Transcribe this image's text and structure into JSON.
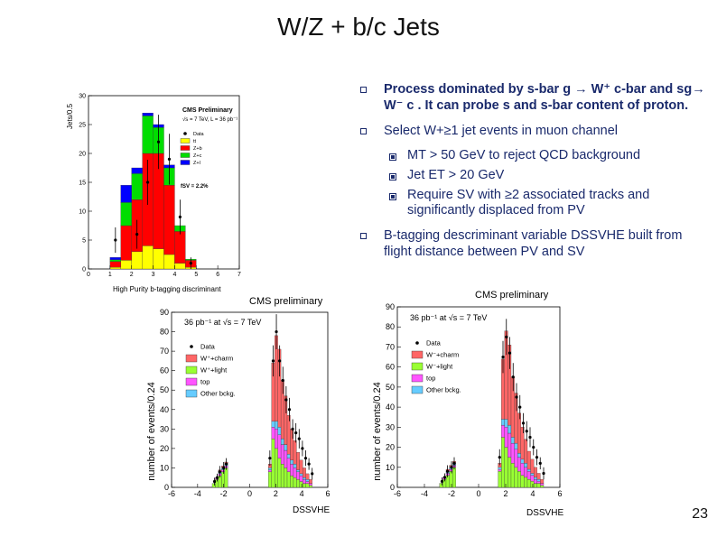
{
  "title": "W/Z + b/c Jets",
  "page_number": "23",
  "bullets": {
    "b1": "Process dominated by s-bar g → W⁺ c-bar and sg→ W⁻ c . It can probe s and s-bar content of proton.",
    "b2": "Select W+≥1 jet events in muon channel",
    "b2_subs": [
      "MT > 50 GeV to reject QCD background",
      "Jet ET > 20 GeV",
      "Require SV with ≥2 associated tracks and significantly displaced from PV"
    ],
    "b3": "B-tagging descriminant variable DSSVHE built from flight distance between PV and SV"
  },
  "chart_data": [
    {
      "type": "bar",
      "title": "CMS Preliminary",
      "subtitle": "√s = 7 TeV, L = 36 pb⁻¹",
      "xlabel": "High Purity b-tagging discriminant",
      "ylabel": "Jets/0.5",
      "xlim": [
        0,
        7
      ],
      "ylim": [
        0,
        30
      ],
      "xticks": [
        "0",
        "1",
        "2",
        "3",
        "4",
        "5",
        "6",
        "7"
      ],
      "yticks": [
        "0",
        "5",
        "10",
        "15",
        "20",
        "25",
        "30"
      ],
      "annotation": "fSV = 2.2%",
      "legend": [
        "Data",
        "tt",
        "Z+b",
        "Z+c",
        "Z+l"
      ],
      "bin_edges": [
        1,
        1.5,
        2,
        2.5,
        3,
        3.5,
        4,
        4.5,
        5
      ],
      "series": [
        {
          "name": "tt",
          "color": "#ffff00",
          "values": [
            0.3,
            1.5,
            3.0,
            4.0,
            3.5,
            2.5,
            1.0,
            0.3
          ]
        },
        {
          "name": "Z+b",
          "color": "#ff0000",
          "values": [
            1.0,
            6.0,
            9.0,
            16.0,
            16.5,
            12.0,
            5.5,
            1.2
          ]
        },
        {
          "name": "Z+c",
          "color": "#00dd00",
          "values": [
            0.3,
            4.0,
            4.5,
            6.5,
            4.5,
            3.0,
            1.0,
            0.2
          ]
        },
        {
          "name": "Z+l",
          "color": "#0000ff",
          "values": [
            0.4,
            3.0,
            1.0,
            0.5,
            0.5,
            0.5,
            0.0,
            0.0
          ]
        }
      ],
      "data_points": {
        "x": [
          1.25,
          2.25,
          2.75,
          3.25,
          3.75,
          4.25,
          4.75
        ],
        "y": [
          5,
          6,
          15,
          22,
          19,
          9,
          1
        ],
        "err": [
          2.2,
          2.5,
          3.9,
          4.7,
          4.4,
          3,
          1
        ]
      }
    },
    {
      "type": "bar",
      "title": "CMS preliminary",
      "subtitle": "36 pb⁻¹ at √s = 7 TeV",
      "xlabel": "DSSVHE",
      "ylabel": "number of events/0.24",
      "xlim": [
        -6,
        6
      ],
      "ylim": [
        0,
        90
      ],
      "xticks": [
        "-6",
        "-4",
        "-2",
        "0",
        "2",
        "4",
        "6"
      ],
      "yticks": [
        "0",
        "10",
        "20",
        "30",
        "40",
        "50",
        "60",
        "70",
        "80",
        "90"
      ],
      "legend": [
        "Data",
        "W⁺+charm",
        "W⁺+light",
        "top",
        "Other bckg."
      ],
      "bin_edges": [
        -2.88,
        -2.64,
        -2.4,
        -2.16,
        -1.92,
        -1.68,
        -1.44,
        1.44,
        1.68,
        1.92,
        2.16,
        2.4,
        2.64,
        2.88,
        3.12,
        3.36,
        3.6,
        3.84,
        4.08,
        4.32,
        4.56,
        4.8,
        5.04
      ],
      "series": [
        {
          "name": "W⁺+light",
          "color": "#99ff33",
          "values": [
            2,
            4,
            6,
            8,
            10,
            0,
            0,
            8,
            25,
            20,
            15,
            12,
            10,
            8,
            6,
            5,
            4,
            3,
            2,
            2,
            1,
            0
          ]
        },
        {
          "name": "top",
          "color": "#ff55ff",
          "values": [
            0,
            1,
            1,
            1,
            1,
            0,
            0,
            1,
            6,
            10,
            12,
            10,
            9,
            7,
            6,
            5,
            4,
            3,
            2,
            1,
            1,
            0
          ]
        },
        {
          "name": "Other bckg.",
          "color": "#66ccff",
          "values": [
            0,
            0,
            1,
            1,
            1,
            0,
            0,
            1,
            3,
            4,
            4,
            3,
            3,
            2,
            2,
            2,
            1,
            1,
            1,
            1,
            0,
            0
          ]
        },
        {
          "name": "W⁺+charm",
          "color": "#ff6666",
          "values": [
            0,
            0,
            1,
            1,
            1,
            0,
            0,
            2,
            30,
            44,
            40,
            30,
            25,
            20,
            16,
            12,
            9,
            7,
            5,
            3,
            2,
            0
          ]
        }
      ],
      "data_points": {
        "x": [
          -2.7,
          -2.5,
          -2.3,
          -2.0,
          -1.8,
          1.55,
          1.8,
          2.05,
          2.3,
          2.55,
          2.8,
          3.05,
          3.3,
          3.55,
          3.8,
          4.05,
          4.3,
          4.55,
          4.8
        ],
        "y": [
          3,
          5,
          8,
          10,
          12,
          15,
          65,
          80,
          65,
          55,
          45,
          40,
          30,
          28,
          25,
          20,
          15,
          12,
          7
        ],
        "err": [
          2,
          2,
          3,
          3,
          3,
          4,
          8,
          9,
          8,
          7,
          7,
          6,
          5,
          5,
          5,
          4,
          4,
          3,
          3
        ]
      }
    },
    {
      "type": "bar",
      "title": "CMS preliminary",
      "subtitle": "36 pb⁻¹ at √s = 7 TeV",
      "xlabel": "DSSVHE",
      "ylabel": "number of events/0.24",
      "xlim": [
        -6,
        6
      ],
      "ylim": [
        0,
        90
      ],
      "xticks": [
        "-6",
        "-4",
        "-2",
        "0",
        "2",
        "4",
        "6"
      ],
      "yticks": [
        "0",
        "10",
        "20",
        "30",
        "40",
        "50",
        "60",
        "70",
        "80",
        "90"
      ],
      "legend": [
        "Data",
        "W⁻+charm",
        "W⁻+light",
        "top",
        "Other bckg."
      ],
      "bin_edges": [
        -2.88,
        -2.64,
        -2.4,
        -2.16,
        -1.92,
        -1.68,
        -1.44,
        1.44,
        1.68,
        1.92,
        2.16,
        2.4,
        2.64,
        2.88,
        3.12,
        3.36,
        3.6,
        3.84,
        4.08,
        4.32,
        4.56,
        4.8,
        5.04
      ],
      "series": [
        {
          "name": "W⁻+light",
          "color": "#99ff33",
          "values": [
            2,
            4,
            6,
            8,
            10,
            0,
            0,
            8,
            25,
            20,
            15,
            12,
            10,
            8,
            6,
            5,
            4,
            3,
            2,
            2,
            1,
            0
          ]
        },
        {
          "name": "top",
          "color": "#ff55ff",
          "values": [
            0,
            1,
            1,
            1,
            1,
            0,
            0,
            1,
            6,
            10,
            12,
            10,
            9,
            7,
            6,
            5,
            4,
            3,
            2,
            1,
            1,
            0
          ]
        },
        {
          "name": "Other bckg.",
          "color": "#66ccff",
          "values": [
            0,
            0,
            1,
            1,
            1,
            0,
            0,
            1,
            3,
            4,
            4,
            3,
            3,
            2,
            2,
            2,
            1,
            1,
            1,
            1,
            0,
            0
          ]
        },
        {
          "name": "W⁻+charm",
          "color": "#ff6666",
          "values": [
            0,
            0,
            1,
            1,
            1,
            0,
            0,
            2,
            30,
            44,
            40,
            30,
            25,
            20,
            16,
            12,
            9,
            7,
            5,
            3,
            2,
            0
          ]
        }
      ],
      "data_points": {
        "x": [
          -2.7,
          -2.5,
          -2.3,
          -2.0,
          -1.8,
          1.55,
          1.8,
          2.05,
          2.3,
          2.55,
          2.8,
          3.05,
          3.3,
          3.55,
          3.8,
          4.05,
          4.3,
          4.55,
          4.8
        ],
        "y": [
          3,
          5,
          8,
          10,
          12,
          15,
          65,
          75,
          67,
          55,
          45,
          40,
          32,
          28,
          25,
          20,
          15,
          12,
          7
        ],
        "err": [
          2,
          2,
          3,
          3,
          3,
          4,
          8,
          9,
          8,
          7,
          7,
          6,
          5,
          5,
          5,
          4,
          4,
          3,
          3
        ]
      }
    }
  ]
}
